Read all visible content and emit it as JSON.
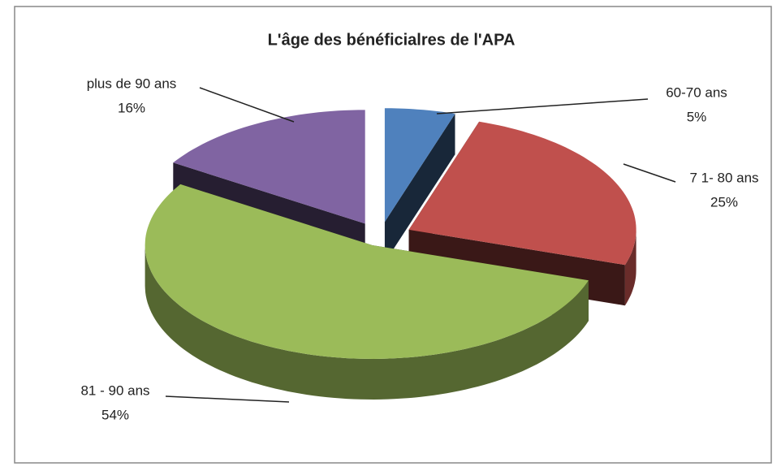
{
  "chart_data": {
    "type": "pie",
    "title": "L'âge des bénéficialres de l'APA",
    "categories": [
      "60-70  ans",
      "7 1- 80 ans",
      "81 - 90 ans",
      "plus de 90 ans"
    ],
    "values": [
      5,
      25,
      54,
      16
    ],
    "value_labels": [
      "5%",
      "25%",
      "54%",
      "16%"
    ],
    "colors": [
      "#4f81bd",
      "#c0504d",
      "#9bbb59",
      "#8064a2"
    ]
  }
}
